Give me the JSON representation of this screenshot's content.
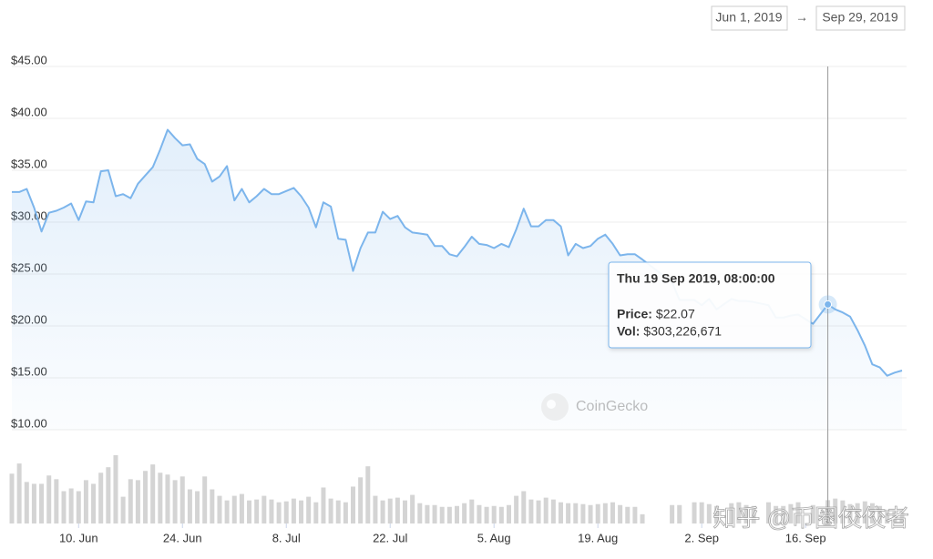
{
  "chart_data": {
    "type": "line",
    "date_range": {
      "start": "Jun 1, 2019",
      "arrow": "→",
      "end": "Sep 29, 2019"
    },
    "watermark": "CoinGecko",
    "overlay_text": "知乎 @币圈佼佼者",
    "xlim": [
      "2019-06-01",
      "2019-09-29"
    ],
    "ylim": [
      10,
      45
    ],
    "grid": true,
    "yticks": [
      {
        "value": 10,
        "label": "$10.00"
      },
      {
        "value": 15,
        "label": "$15.00"
      },
      {
        "value": 20,
        "label": "$20.00"
      },
      {
        "value": 25,
        "label": "$25.00"
      },
      {
        "value": 30,
        "label": "$30.00"
      },
      {
        "value": 35,
        "label": "$35.00"
      },
      {
        "value": 40,
        "label": "$40.00"
      },
      {
        "value": 45,
        "label": "$45.00"
      }
    ],
    "xticks": [
      {
        "value": "2019-06-10",
        "label": "10. Jun"
      },
      {
        "value": "2019-06-24",
        "label": "24. Jun"
      },
      {
        "value": "2019-07-08",
        "label": "8. Jul"
      },
      {
        "value": "2019-07-22",
        "label": "22. Jul"
      },
      {
        "value": "2019-08-05",
        "label": "5. Aug"
      },
      {
        "value": "2019-08-19",
        "label": "19. Aug"
      },
      {
        "value": "2019-09-02",
        "label": "2. Sep"
      },
      {
        "value": "2019-09-16",
        "label": "16. Sep"
      }
    ],
    "x": [
      "2019-06-01",
      "2019-06-02",
      "2019-06-03",
      "2019-06-04",
      "2019-06-05",
      "2019-06-06",
      "2019-06-07",
      "2019-06-08",
      "2019-06-09",
      "2019-06-10",
      "2019-06-11",
      "2019-06-12",
      "2019-06-13",
      "2019-06-14",
      "2019-06-15",
      "2019-06-16",
      "2019-06-17",
      "2019-06-18",
      "2019-06-19",
      "2019-06-20",
      "2019-06-21",
      "2019-06-22",
      "2019-06-23",
      "2019-06-24",
      "2019-06-25",
      "2019-06-26",
      "2019-06-27",
      "2019-06-28",
      "2019-06-29",
      "2019-06-30",
      "2019-07-01",
      "2019-07-02",
      "2019-07-03",
      "2019-07-04",
      "2019-07-05",
      "2019-07-06",
      "2019-07-07",
      "2019-07-08",
      "2019-07-09",
      "2019-07-10",
      "2019-07-11",
      "2019-07-12",
      "2019-07-13",
      "2019-07-14",
      "2019-07-15",
      "2019-07-16",
      "2019-07-17",
      "2019-07-18",
      "2019-07-19",
      "2019-07-20",
      "2019-07-21",
      "2019-07-22",
      "2019-07-23",
      "2019-07-24",
      "2019-07-25",
      "2019-07-26",
      "2019-07-27",
      "2019-07-28",
      "2019-07-29",
      "2019-07-30",
      "2019-07-31",
      "2019-08-01",
      "2019-08-02",
      "2019-08-03",
      "2019-08-04",
      "2019-08-05",
      "2019-08-06",
      "2019-08-07",
      "2019-08-08",
      "2019-08-09",
      "2019-08-10",
      "2019-08-11",
      "2019-08-12",
      "2019-08-13",
      "2019-08-14",
      "2019-08-15",
      "2019-08-16",
      "2019-08-17",
      "2019-08-18",
      "2019-08-19",
      "2019-08-20",
      "2019-08-21",
      "2019-08-22",
      "2019-08-23",
      "2019-08-24",
      "2019-08-25",
      "2019-08-29",
      "2019-08-30",
      "2019-09-01",
      "2019-09-02",
      "2019-09-03",
      "2019-09-04",
      "2019-09-06",
      "2019-09-07",
      "2019-09-08",
      "2019-09-09",
      "2019-09-11",
      "2019-09-12",
      "2019-09-13",
      "2019-09-14",
      "2019-09-15",
      "2019-09-17",
      "2019-09-19",
      "2019-09-20",
      "2019-09-21",
      "2019-09-22",
      "2019-09-23",
      "2019-09-24",
      "2019-09-25",
      "2019-09-26",
      "2019-09-27",
      "2019-09-28",
      "2019-09-29"
    ],
    "series": [
      {
        "color": "#7cb5ec",
        "values": [
          32.9,
          32.9,
          33.2,
          31.4,
          29.1,
          30.9,
          31.1,
          31.4,
          31.8,
          30.2,
          32.0,
          31.9,
          34.9,
          35.0,
          32.5,
          32.7,
          32.3,
          33.7,
          34.5,
          35.3,
          37.0,
          38.9,
          38.1,
          37.4,
          37.5,
          36.1,
          35.6,
          33.9,
          34.4,
          35.4,
          32.1,
          33.2,
          31.9,
          32.5,
          33.2,
          32.7,
          32.7,
          33.0,
          33.3,
          32.5,
          31.4,
          29.5,
          31.9,
          31.5,
          28.4,
          28.3,
          25.3,
          27.5,
          29.0,
          29.0,
          31.0,
          30.3,
          30.6,
          29.5,
          29.0,
          28.9,
          28.8,
          27.7,
          27.7,
          26.9,
          26.7,
          27.6,
          28.6,
          27.9,
          27.8,
          27.5,
          27.9,
          27.6,
          29.3,
          31.3,
          29.6,
          29.6,
          30.2,
          30.2,
          29.6,
          26.8,
          27.9,
          27.5,
          27.7,
          28.4,
          28.8,
          27.9,
          26.8,
          26.9,
          26.9,
          26.4,
          24.2,
          22.5,
          22.5,
          22.0,
          22.6,
          21.6,
          22.6,
          22.4,
          22.4,
          22.3,
          22.0,
          20.8,
          20.8,
          21.0,
          21.1,
          20.2,
          22.07,
          21.6,
          21.3,
          20.9,
          19.6,
          18.1,
          16.3,
          16.0,
          15.2,
          15.5,
          15.7
        ]
      }
    ],
    "volume": {
      "color": "#d4d4d4",
      "values": [
        648000000,
        780000000,
        540000000,
        516000000,
        516000000,
        624000000,
        576000000,
        420000000,
        456000000,
        420000000,
        564000000,
        516000000,
        660000000,
        732000000,
        888000000,
        348000000,
        576000000,
        564000000,
        684000000,
        768000000,
        660000000,
        636000000,
        564000000,
        612000000,
        444000000,
        420000000,
        612000000,
        444000000,
        360000000,
        300000000,
        360000000,
        384000000,
        300000000,
        312000000,
        360000000,
        312000000,
        276000000,
        288000000,
        324000000,
        300000000,
        348000000,
        276000000,
        468000000,
        324000000,
        300000000,
        276000000,
        480000000,
        600000000,
        744000000,
        360000000,
        300000000,
        324000000,
        336000000,
        300000000,
        372000000,
        264000000,
        240000000,
        240000000,
        216000000,
        216000000,
        228000000,
        264000000,
        312000000,
        240000000,
        216000000,
        228000000,
        216000000,
        240000000,
        360000000,
        420000000,
        312000000,
        300000000,
        336000000,
        312000000,
        276000000,
        264000000,
        264000000,
        252000000,
        240000000,
        252000000,
        264000000,
        276000000,
        240000000,
        216000000,
        216000000,
        120000000,
        240000000,
        240000000,
        276000000,
        276000000,
        252000000,
        228000000,
        264000000,
        276000000,
        240000000,
        228000000,
        276000000,
        228000000,
        228000000,
        252000000,
        276000000,
        240000000,
        303226671,
        324000000,
        300000000,
        252000000,
        264000000,
        288000000,
        264000000,
        228000000,
        180000000,
        156000000,
        144000000
      ]
    },
    "tooltip": {
      "x": "2019-09-19",
      "title": "Thu 19 Sep 2019, 08:00:00",
      "price_key": "Price:",
      "price_text": "$22.07",
      "vol_key": "Vol:",
      "vol_text": "$303,226,671"
    }
  }
}
